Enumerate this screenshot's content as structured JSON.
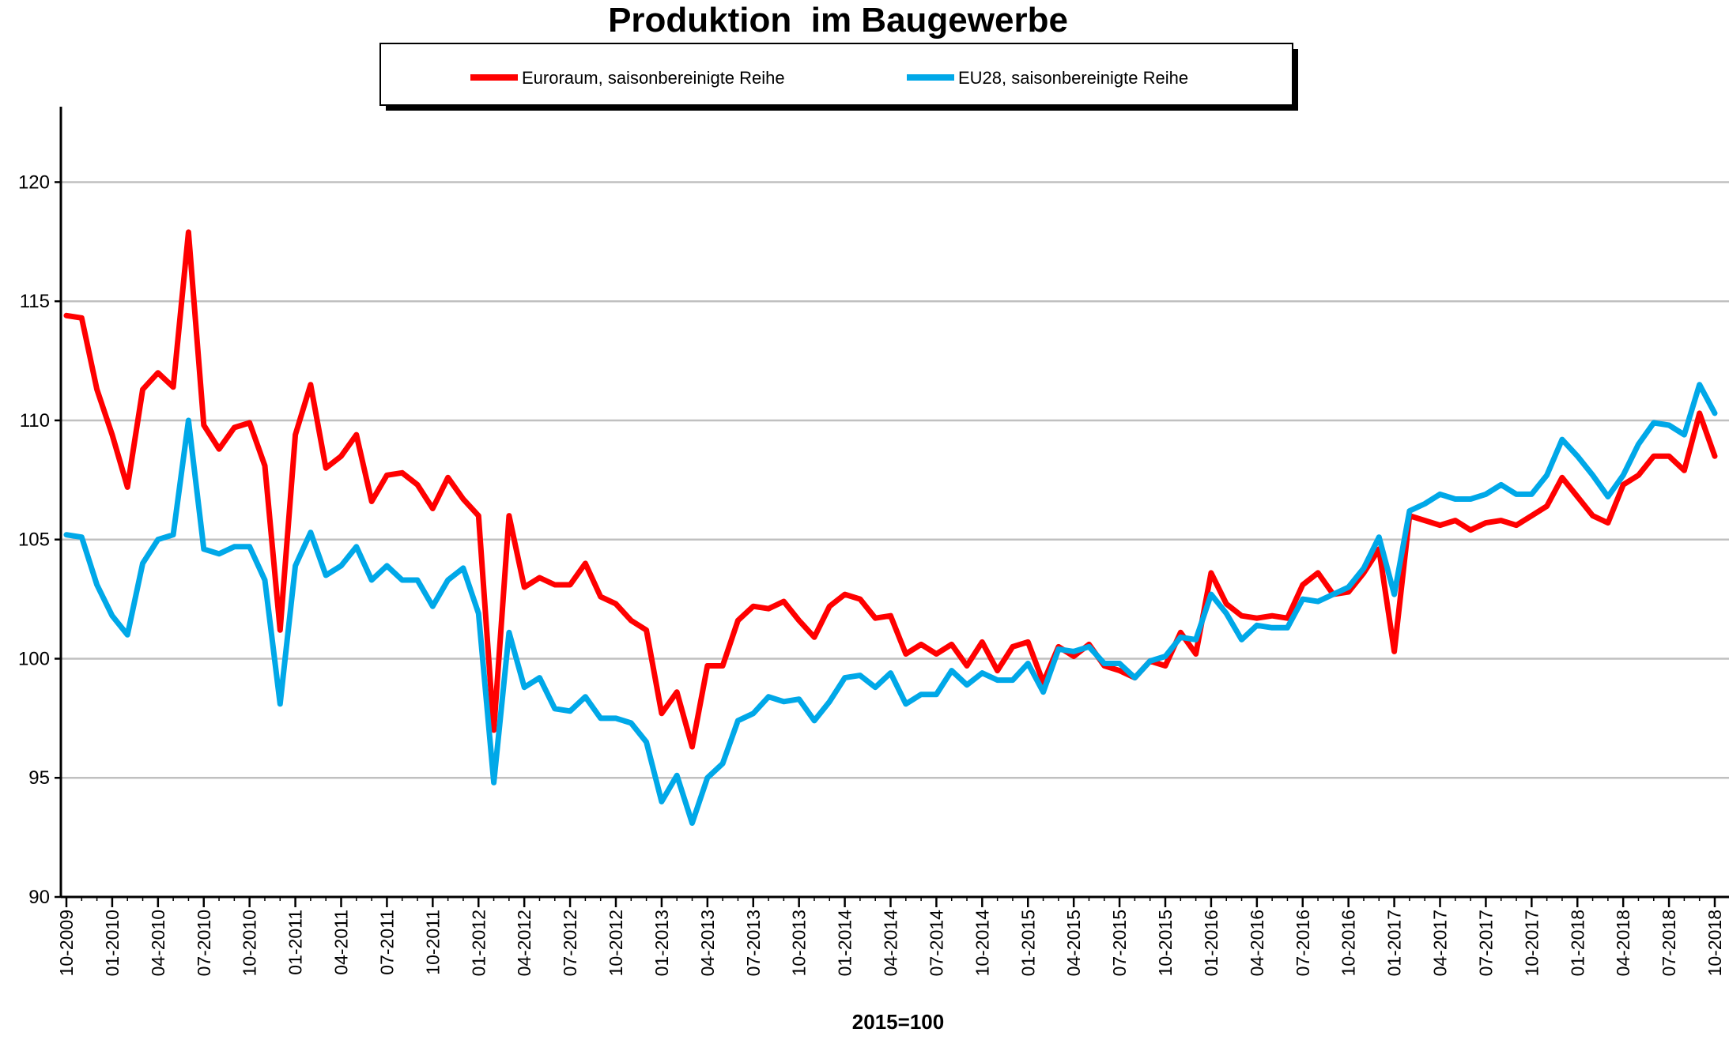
{
  "chart_data": {
    "type": "line",
    "title": "Produktion  im Baugewerbe",
    "xlabel": "2015=100",
    "ylabel": "",
    "ylim": [
      90,
      123
    ],
    "yticks": [
      90,
      95,
      100,
      105,
      110,
      115,
      120
    ],
    "grid": true,
    "legend_position": "top-center",
    "x_tick_labels": [
      "10-2009",
      "01-2010",
      "04-2010",
      "07-2010",
      "10-2010",
      "01-2011",
      "04-2011",
      "07-2011",
      "10-2011",
      "01-2012",
      "04-2012",
      "07-2012",
      "10-2012",
      "01-2013",
      "04-2013",
      "07-2013",
      "10-2013",
      "01-2014",
      "04-2014",
      "07-2014",
      "10-2014",
      "01-2015",
      "04-2015",
      "07-2015",
      "10-2015",
      "01-2016",
      "04-2016",
      "07-2016",
      "10-2016",
      "01-2017",
      "04-2017",
      "07-2017",
      "10-2017",
      "01-2018",
      "04-2018",
      "07-2018",
      "10-2018"
    ],
    "x": [
      "10-2009",
      "11-2009",
      "12-2009",
      "01-2010",
      "02-2010",
      "03-2010",
      "04-2010",
      "05-2010",
      "06-2010",
      "07-2010",
      "08-2010",
      "09-2010",
      "10-2010",
      "11-2010",
      "12-2010",
      "01-2011",
      "02-2011",
      "03-2011",
      "04-2011",
      "05-2011",
      "06-2011",
      "07-2011",
      "08-2011",
      "09-2011",
      "10-2011",
      "11-2011",
      "12-2011",
      "01-2012",
      "02-2012",
      "03-2012",
      "04-2012",
      "05-2012",
      "06-2012",
      "07-2012",
      "08-2012",
      "09-2012",
      "10-2012",
      "11-2012",
      "12-2012",
      "01-2013",
      "02-2013",
      "03-2013",
      "04-2013",
      "05-2013",
      "06-2013",
      "07-2013",
      "08-2013",
      "09-2013",
      "10-2013",
      "11-2013",
      "12-2013",
      "01-2014",
      "02-2014",
      "03-2014",
      "04-2014",
      "05-2014",
      "06-2014",
      "07-2014",
      "08-2014",
      "09-2014",
      "10-2014",
      "11-2014",
      "12-2014",
      "01-2015",
      "02-2015",
      "03-2015",
      "04-2015",
      "05-2015",
      "06-2015",
      "07-2015",
      "08-2015",
      "09-2015",
      "10-2015",
      "11-2015",
      "12-2015",
      "01-2016",
      "02-2016",
      "03-2016",
      "04-2016",
      "05-2016",
      "06-2016",
      "07-2016",
      "08-2016",
      "09-2016",
      "10-2016",
      "11-2016",
      "12-2016",
      "01-2017",
      "02-2017",
      "03-2017",
      "04-2017",
      "05-2017",
      "06-2017",
      "07-2017",
      "08-2017",
      "09-2017",
      "10-2017",
      "11-2017",
      "12-2017",
      "01-2018",
      "02-2018",
      "03-2018",
      "04-2018",
      "05-2018",
      "06-2018",
      "07-2018",
      "08-2018",
      "09-2018",
      "10-2018"
    ],
    "series": [
      {
        "name": "Euroraum, saisonbereinigte Reihe",
        "color": "#ff0000",
        "values": [
          114.4,
          114.3,
          111.3,
          109.4,
          107.2,
          111.3,
          112.0,
          111.4,
          117.9,
          109.8,
          108.8,
          109.7,
          109.9,
          108.1,
          101.2,
          109.4,
          111.5,
          108.0,
          108.5,
          109.4,
          106.6,
          107.7,
          107.8,
          107.3,
          106.3,
          107.6,
          106.7,
          106.0,
          97.0,
          106.0,
          103.0,
          103.4,
          103.1,
          103.1,
          104.0,
          102.6,
          102.3,
          101.6,
          101.2,
          97.7,
          98.6,
          96.3,
          99.7,
          99.7,
          101.6,
          102.2,
          102.1,
          102.4,
          101.6,
          100.9,
          102.2,
          102.7,
          102.5,
          101.7,
          101.8,
          100.2,
          100.6,
          100.2,
          100.6,
          99.7,
          100.7,
          99.5,
          100.5,
          100.7,
          99.0,
          100.5,
          100.1,
          100.6,
          99.7,
          99.5,
          99.2,
          99.9,
          99.7,
          101.1,
          100.2,
          103.6,
          102.3,
          101.8,
          101.7,
          101.8,
          101.7,
          103.1,
          103.6,
          102.7,
          102.8,
          103.6,
          104.6,
          100.3,
          106.0,
          105.8,
          105.6,
          105.8,
          105.4,
          105.7,
          105.8,
          105.6,
          106.0,
          106.4,
          107.6,
          106.8,
          106.0,
          105.7,
          107.3,
          107.7,
          108.5,
          108.5,
          107.9,
          110.3,
          108.5
        ]
      },
      {
        "name": "EU28, saisonbereinigte Reihe",
        "color": "#00a8e8",
        "values": [
          105.2,
          105.1,
          103.1,
          101.8,
          101.0,
          104.0,
          105.0,
          105.2,
          110.0,
          104.6,
          104.4,
          104.7,
          104.7,
          103.3,
          98.1,
          103.9,
          105.3,
          103.5,
          103.9,
          104.7,
          103.3,
          103.9,
          103.3,
          103.3,
          102.2,
          103.3,
          103.8,
          101.9,
          94.8,
          101.1,
          98.8,
          99.2,
          97.9,
          97.8,
          98.4,
          97.5,
          97.5,
          97.3,
          96.5,
          94.0,
          95.1,
          93.1,
          95.0,
          95.6,
          97.4,
          97.7,
          98.4,
          98.2,
          98.3,
          97.4,
          98.2,
          99.2,
          99.3,
          98.8,
          99.4,
          98.1,
          98.5,
          98.5,
          99.5,
          98.9,
          99.4,
          99.1,
          99.1,
          99.8,
          98.6,
          100.4,
          100.3,
          100.5,
          99.8,
          99.8,
          99.2,
          99.9,
          100.1,
          100.9,
          100.8,
          102.7,
          101.9,
          100.8,
          101.4,
          101.3,
          101.3,
          102.5,
          102.4,
          102.7,
          103.0,
          103.8,
          105.1,
          102.7,
          106.2,
          106.5,
          106.9,
          106.7,
          106.7,
          106.9,
          107.3,
          106.9,
          106.9,
          107.7,
          109.2,
          108.5,
          107.7,
          106.8,
          107.7,
          109.0,
          109.9,
          109.8,
          109.4,
          111.5,
          110.3
        ]
      }
    ]
  }
}
